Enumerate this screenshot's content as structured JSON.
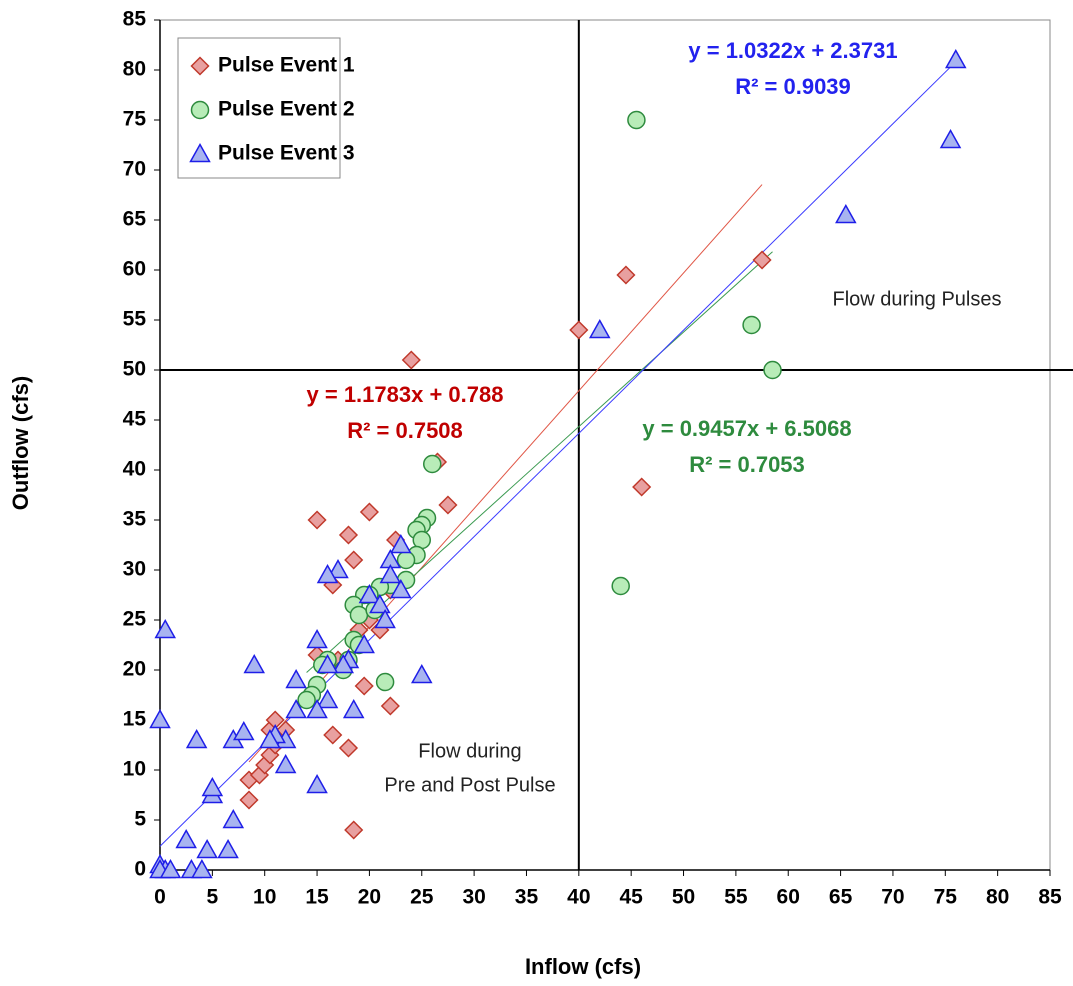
{
  "chart_data": {
    "type": "scatter",
    "x_label": "Inflow (cfs)",
    "y_label": "Outflow (cfs)",
    "xlim": [
      0,
      85
    ],
    "ylim": [
      0,
      85
    ],
    "xticks": [
      0,
      5,
      10,
      15,
      20,
      25,
      30,
      35,
      40,
      45,
      50,
      55,
      60,
      65,
      70,
      75,
      80,
      85
    ],
    "yticks": [
      0,
      5,
      10,
      15,
      20,
      25,
      30,
      35,
      40,
      45,
      50,
      55,
      60,
      65,
      70,
      75,
      80,
      85
    ],
    "vlines": [
      40
    ],
    "hlines": [
      50
    ],
    "annotations": [
      {
        "lines": [
          "Flow during Pulses"
        ]
      },
      {
        "lines": [
          "Flow during",
          "Pre and Post Pulse"
        ]
      }
    ],
    "series": [
      {
        "name": "Pulse Event 1",
        "marker": "diamond",
        "color": "#e8a0a0",
        "edge": "#c0392b",
        "trendline": {
          "slope": 1.1783,
          "intercept": 0.788,
          "color": "#e05545",
          "equation": "y = 1.1783x + 0.788",
          "r2": "R² = 0.7508",
          "label_color": "#c00000"
        },
        "x": [
          24,
          40,
          44.5,
          57.5,
          46,
          27.5,
          26.5,
          20,
          15,
          18,
          18.5,
          16.5,
          22.5,
          21,
          19.5,
          22,
          16.5,
          18,
          18.5,
          8.5,
          8.5,
          9.5,
          10,
          10.5,
          11,
          11.5,
          10.5,
          11,
          12,
          15,
          17,
          19,
          20,
          22
        ],
        "values": [
          51,
          54,
          59.5,
          61,
          38.3,
          36.5,
          40.8,
          35.8,
          35,
          33.5,
          31,
          28.5,
          33,
          24,
          18.4,
          16.4,
          13.5,
          12.2,
          4,
          7,
          9,
          9.5,
          10.5,
          11.5,
          12.5,
          13,
          14,
          15,
          14,
          21.5,
          21,
          24,
          25,
          28
        ]
      },
      {
        "name": "Pulse Event 2",
        "marker": "circle",
        "color": "#b8ecb8",
        "edge": "#2e8b3e",
        "trendline": {
          "slope": 0.9457,
          "intercept": 6.5068,
          "color": "#3a9a50",
          "equation": "y = 0.9457x + 6.5068",
          "r2": "R² = 0.7053",
          "label_color": "#2e8b3e"
        },
        "x": [
          45.5,
          56.5,
          58.5,
          44,
          26,
          25.5,
          25,
          24.5,
          25,
          24.5,
          23.5,
          23.5,
          22,
          21,
          20,
          19.5,
          18.5,
          19,
          20.5,
          18.5,
          19,
          18,
          17.5,
          16,
          15.5,
          15,
          14.5,
          14,
          21.5
        ],
        "values": [
          75,
          54.5,
          50,
          28.4,
          40.6,
          35.2,
          34.5,
          34,
          33,
          31.5,
          31,
          29,
          28.5,
          28.3,
          27.5,
          27.5,
          26.5,
          25.5,
          26,
          23,
          22.5,
          21,
          20,
          21,
          20.5,
          18.5,
          17.5,
          17,
          18.8
        ]
      },
      {
        "name": "Pulse Event 3",
        "marker": "triangle",
        "color": "#a8b4f0",
        "edge": "#1e1ee8",
        "trendline": {
          "slope": 1.0322,
          "intercept": 2.3731,
          "color": "#3a3aff",
          "equation": "y = 1.0322x + 2.3731",
          "r2": "R² = 0.9039",
          "label_color": "#2222ee"
        },
        "x": [
          76,
          75.5,
          65.5,
          42,
          23,
          22,
          17,
          16,
          23,
          22,
          20,
          21,
          21.5,
          15,
          19.5,
          18,
          17.5,
          16,
          16,
          15,
          13,
          13,
          12,
          11,
          10.5,
          12,
          15,
          18.5,
          25,
          9,
          0.5,
          0,
          3.5,
          7,
          8,
          5,
          5,
          7,
          6.5,
          4.5,
          2.5,
          0,
          0.5,
          3,
          4,
          0,
          1
        ],
        "values": [
          81,
          73,
          65.5,
          54,
          32.5,
          31,
          30,
          29.5,
          28,
          29.5,
          27.5,
          26.5,
          25,
          23,
          22.5,
          21,
          20.5,
          20.5,
          17,
          16,
          16,
          19,
          13,
          13.5,
          13,
          10.5,
          8.5,
          16,
          19.5,
          20.5,
          24,
          15,
          13,
          13,
          13.8,
          7.5,
          8.2,
          5,
          2,
          2,
          3,
          0.5,
          0,
          0,
          0,
          0,
          0
        ]
      }
    ]
  }
}
